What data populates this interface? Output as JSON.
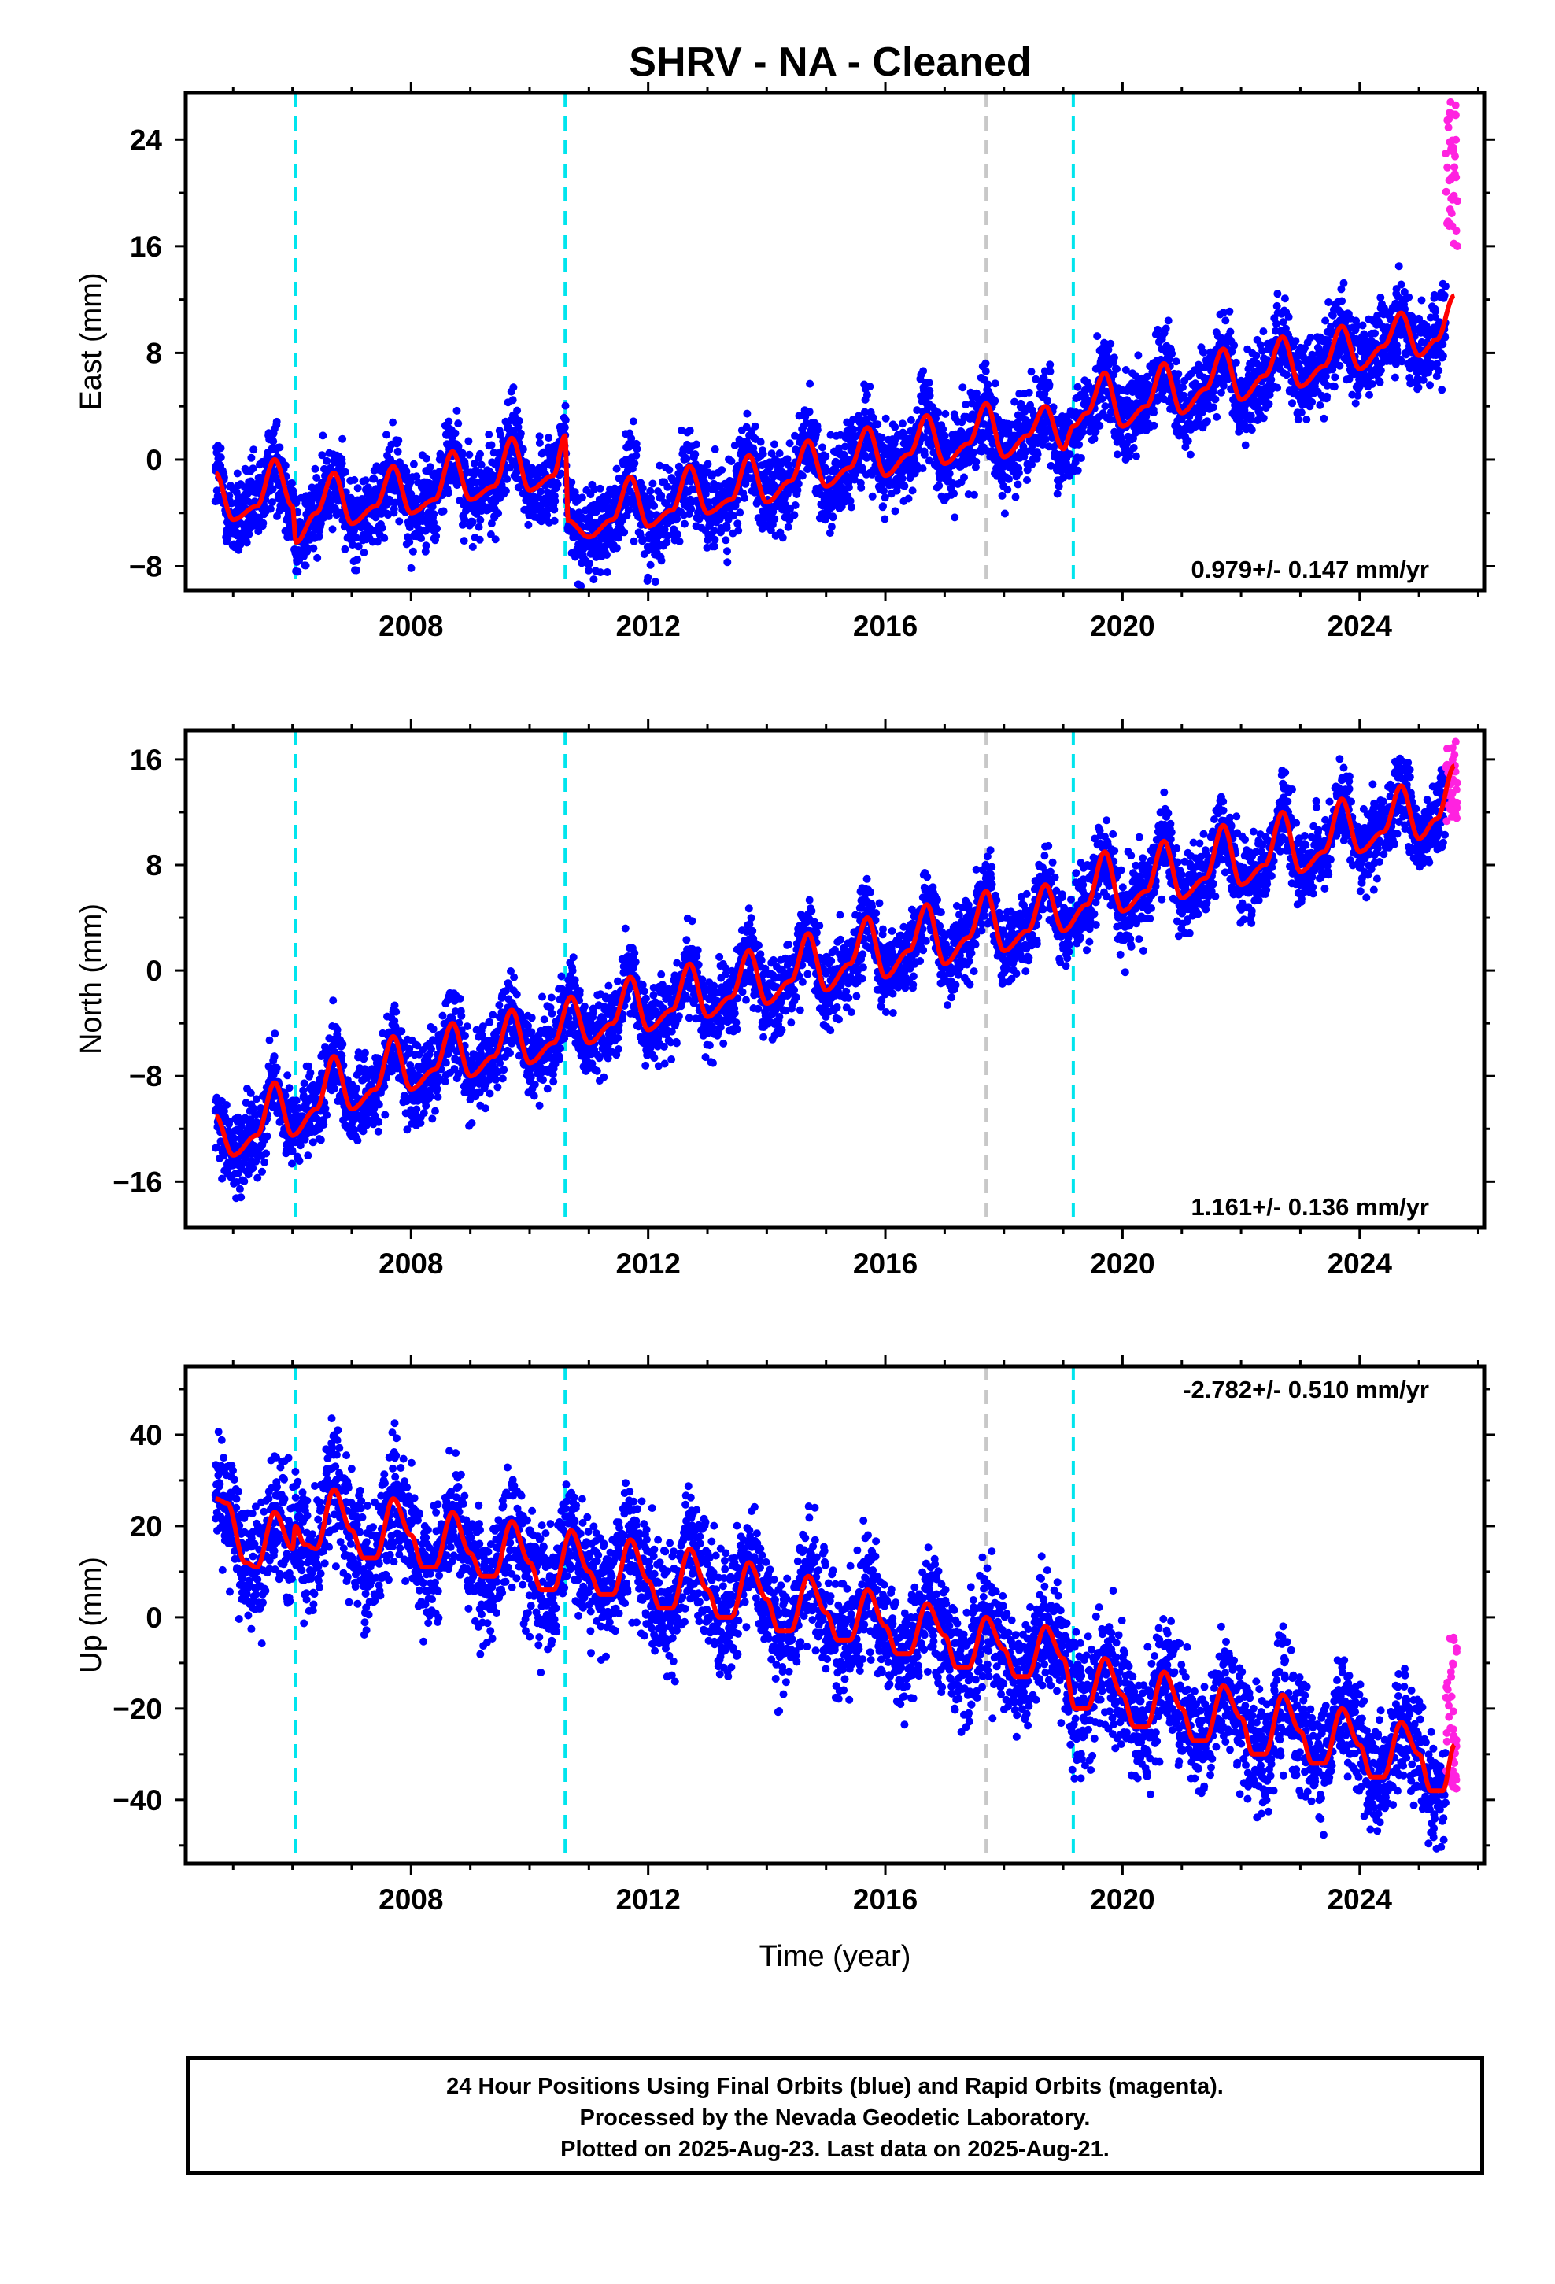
{
  "colors": {
    "final_orbits": "#0000ff",
    "rapid_orbits": "#ff22e0",
    "model": "#ff0000",
    "equipment_change": "#00e5ee",
    "earthquake": "#c8c8c8",
    "frame": "#000000"
  },
  "chart_data": [
    {
      "type": "scatter",
      "title": "SHRV  - NA - Cleaned",
      "ylabel": "East (mm)",
      "xlabel": "",
      "xlim": [
        2004.2,
        2026.1
      ],
      "ylim": [
        -9.8,
        27.5
      ],
      "x_ticks": [
        2008,
        2012,
        2016,
        2020,
        2024
      ],
      "y_ticks": [
        -8,
        0,
        8,
        16,
        24
      ],
      "grid": false,
      "rate_label": "0.979+/- 0.147 mm/yr",
      "rate_position": "bottom-right",
      "vertical_lines": [
        {
          "x": 2006.05,
          "kind": "equipment"
        },
        {
          "x": 2010.6,
          "kind": "equipment"
        },
        {
          "x": 2017.7,
          "kind": "earthquake"
        },
        {
          "x": 2019.17,
          "kind": "equipment"
        }
      ],
      "model_curve": {
        "name": "model",
        "x": [
          2004.7,
          2005.0,
          2005.4,
          2005.7,
          2006.0,
          2006.06,
          2006.4,
          2006.7,
          2007.0,
          2007.4,
          2007.7,
          2008.0,
          2008.4,
          2008.7,
          2009.0,
          2009.4,
          2009.7,
          2010.0,
          2010.4,
          2010.6,
          2010.65,
          2011.0,
          2011.4,
          2011.7,
          2012.0,
          2012.4,
          2012.7,
          2013.0,
          2013.4,
          2013.7,
          2014.0,
          2014.4,
          2014.7,
          2015.0,
          2015.4,
          2015.7,
          2016.0,
          2016.4,
          2016.7,
          2017.0,
          2017.4,
          2017.7,
          2018.0,
          2018.4,
          2018.7,
          2019.0,
          2019.17,
          2019.4,
          2019.7,
          2020.0,
          2020.4,
          2020.7,
          2021.0,
          2021.4,
          2021.7,
          2022.0,
          2022.4,
          2022.7,
          2023.0,
          2023.4,
          2023.7,
          2024.0,
          2024.4,
          2024.7,
          2025.0,
          2025.3,
          2025.6
        ],
        "y": [
          -1.0,
          -4.5,
          -3.5,
          0.0,
          -3.5,
          -6.2,
          -4.0,
          -1.0,
          -4.8,
          -3.5,
          -0.5,
          -4.0,
          -3.0,
          0.6,
          -3.0,
          -2.0,
          1.6,
          -2.3,
          -1.2,
          1.8,
          -4.6,
          -5.8,
          -4.5,
          -1.3,
          -5.0,
          -3.8,
          -0.5,
          -4.0,
          -3.0,
          0.3,
          -3.2,
          -1.6,
          1.4,
          -2.0,
          -0.6,
          2.4,
          -1.2,
          0.4,
          3.3,
          -0.3,
          1.2,
          4.2,
          0.2,
          1.8,
          4.0,
          0.8,
          2.5,
          3.5,
          6.5,
          2.5,
          4.0,
          7.2,
          3.5,
          5.3,
          8.3,
          4.5,
          6.3,
          9.2,
          5.5,
          7.0,
          10.0,
          6.8,
          8.5,
          11.0,
          7.8,
          9.0,
          12.3
        ]
      },
      "rapid_orbits": {
        "x_range": [
          2025.45,
          2025.65
        ],
        "y_range": [
          15.5,
          27
        ]
      }
    },
    {
      "type": "scatter",
      "title": "",
      "ylabel": "North (mm)",
      "xlabel": "",
      "xlim": [
        2004.2,
        2026.1
      ],
      "ylim": [
        -19.5,
        18.2
      ],
      "x_ticks": [
        2008,
        2012,
        2016,
        2020,
        2024
      ],
      "y_ticks": [
        -16,
        -8,
        0,
        8,
        16
      ],
      "grid": false,
      "rate_label": "1.161+/- 0.136 mm/yr",
      "rate_position": "bottom-right",
      "vertical_lines": [
        {
          "x": 2006.05,
          "kind": "equipment"
        },
        {
          "x": 2010.6,
          "kind": "equipment"
        },
        {
          "x": 2017.7,
          "kind": "earthquake"
        },
        {
          "x": 2019.17,
          "kind": "equipment"
        }
      ],
      "model_curve": {
        "name": "model",
        "x": [
          2004.7,
          2005.0,
          2005.4,
          2005.7,
          2006.0,
          2006.4,
          2006.7,
          2007.0,
          2007.4,
          2007.7,
          2008.0,
          2008.4,
          2008.7,
          2009.0,
          2009.4,
          2009.7,
          2010.0,
          2010.4,
          2010.7,
          2011.0,
          2011.4,
          2011.7,
          2012.0,
          2012.4,
          2012.7,
          2013.0,
          2013.4,
          2013.7,
          2014.0,
          2014.4,
          2014.7,
          2015.0,
          2015.4,
          2015.7,
          2016.0,
          2016.4,
          2016.7,
          2017.0,
          2017.4,
          2017.7,
          2018.0,
          2018.4,
          2018.7,
          2019.0,
          2019.4,
          2019.7,
          2020.0,
          2020.4,
          2020.7,
          2021.0,
          2021.4,
          2021.7,
          2022.0,
          2022.4,
          2022.7,
          2023.0,
          2023.4,
          2023.7,
          2024.0,
          2024.4,
          2024.7,
          2025.0,
          2025.3,
          2025.6
        ],
        "y": [
          -11,
          -14,
          -12.5,
          -8.5,
          -12.5,
          -10.5,
          -6.5,
          -10.5,
          -9.0,
          -5.0,
          -9.0,
          -7.5,
          -4.0,
          -8.0,
          -6.5,
          -3.0,
          -7.0,
          -5.5,
          -2.0,
          -5.5,
          -4.0,
          -0.5,
          -4.5,
          -3.0,
          0.5,
          -3.5,
          -2.0,
          1.5,
          -2.5,
          -0.8,
          2.8,
          -1.5,
          0.5,
          4.0,
          -0.5,
          1.5,
          5.0,
          0.5,
          2.5,
          6.0,
          1.5,
          3.0,
          6.5,
          3.0,
          5.0,
          9.0,
          4.5,
          6.0,
          9.8,
          5.5,
          7.0,
          11.0,
          6.5,
          8.0,
          12.0,
          7.5,
          9.0,
          13.0,
          9.0,
          10.5,
          14.0,
          10.0,
          11.5,
          15.5
        ]
      },
      "rapid_orbits": {
        "x_range": [
          2025.45,
          2025.65
        ],
        "y_range": [
          11,
          17.5
        ]
      }
    },
    {
      "type": "scatter",
      "title": "",
      "ylabel": "Up (mm)",
      "xlabel": "Time (year)",
      "xlim": [
        2004.2,
        2026.1
      ],
      "ylim": [
        -54,
        55
      ],
      "x_ticks": [
        2008,
        2012,
        2016,
        2020,
        2024
      ],
      "y_ticks": [
        -40,
        -20,
        0,
        20,
        40
      ],
      "grid": false,
      "rate_label": "-2.782+/- 0.510 mm/yr",
      "rate_position": "top-right",
      "vertical_lines": [
        {
          "x": 2006.05,
          "kind": "equipment"
        },
        {
          "x": 2010.6,
          "kind": "equipment"
        },
        {
          "x": 2017.7,
          "kind": "earthquake"
        },
        {
          "x": 2019.17,
          "kind": "equipment"
        }
      ],
      "model_curve": {
        "name": "model",
        "x": [
          2004.7,
          2004.9,
          2005.2,
          2005.4,
          2005.7,
          2006.0,
          2006.05,
          2006.2,
          2006.4,
          2006.7,
          2007.0,
          2007.2,
          2007.4,
          2007.7,
          2008.0,
          2008.2,
          2008.4,
          2008.7,
          2009.0,
          2009.2,
          2009.4,
          2009.7,
          2010.0,
          2010.2,
          2010.4,
          2010.7,
          2011.0,
          2011.2,
          2011.4,
          2011.7,
          2012.0,
          2012.2,
          2012.4,
          2012.7,
          2013.0,
          2013.2,
          2013.4,
          2013.7,
          2014.0,
          2014.2,
          2014.4,
          2014.7,
          2015.0,
          2015.2,
          2015.4,
          2015.7,
          2016.0,
          2016.2,
          2016.4,
          2016.7,
          2017.0,
          2017.2,
          2017.4,
          2017.7,
          2018.0,
          2018.2,
          2018.4,
          2018.7,
          2019.0,
          2019.2,
          2019.4,
          2019.7,
          2020.0,
          2020.2,
          2020.4,
          2020.7,
          2021.0,
          2021.2,
          2021.4,
          2021.7,
          2022.0,
          2022.2,
          2022.4,
          2022.7,
          2023.0,
          2023.2,
          2023.4,
          2023.7,
          2024.0,
          2024.2,
          2024.4,
          2024.7,
          2025.0,
          2025.2,
          2025.4,
          2025.6
        ],
        "y": [
          26,
          25,
          12,
          11,
          23,
          15,
          20,
          16,
          15,
          28,
          19,
          13,
          13,
          26,
          18,
          11,
          11,
          23,
          14,
          9,
          9,
          21,
          12,
          6,
          6,
          19,
          10,
          5,
          5,
          17,
          8,
          2,
          2,
          15,
          6,
          0,
          0,
          12,
          4,
          -3,
          -3,
          9,
          1,
          -5,
          -5,
          6,
          -2,
          -8,
          -8,
          3,
          -4,
          -11,
          -11,
          0,
          -7,
          -13,
          -13,
          -2,
          -9,
          -20,
          -20,
          -9,
          -17,
          -24,
          -24,
          -12,
          -20,
          -27,
          -27,
          -15,
          -22,
          -30,
          -30,
          -17,
          -25,
          -32,
          -32,
          -20,
          -28,
          -35,
          -35,
          -23,
          -30,
          -38,
          -38,
          -28
        ]
      },
      "rapid_orbits": {
        "x_range": [
          2025.45,
          2025.65
        ],
        "y_range": [
          -38,
          -4
        ]
      }
    }
  ],
  "footer": {
    "line1": "24 Hour Positions Using Final Orbits (blue) and Rapid Orbits (magenta).",
    "line2": "Processed by the Nevada Geodetic Laboratory.",
    "line3": "Plotted on 2025-Aug-23. Last data on 2025-Aug-21."
  }
}
